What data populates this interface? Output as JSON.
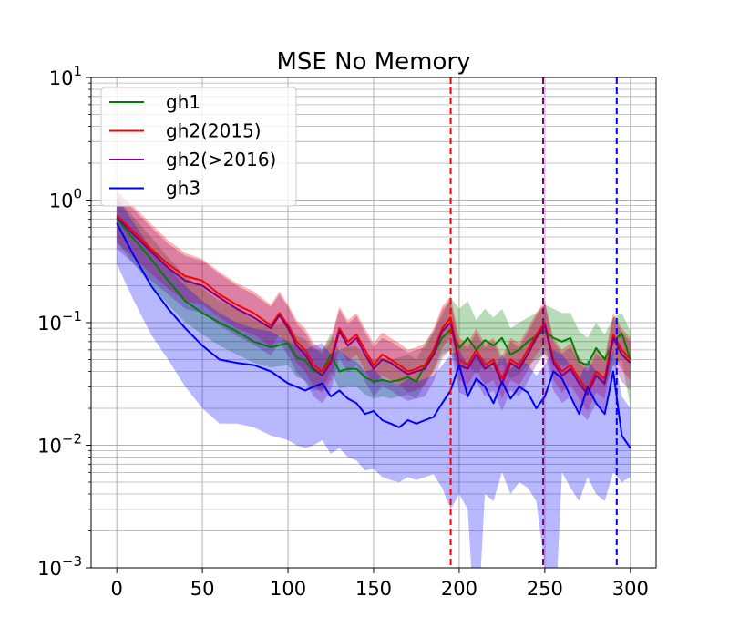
{
  "chart_data": {
    "type": "line",
    "title": "MSE No Memory",
    "xlabel": "",
    "ylabel": "",
    "yscale": "log",
    "xlim": [
      -15,
      315
    ],
    "ylim": [
      0.001,
      10
    ],
    "grid": true,
    "legend_position": "top-left",
    "x_ticks": [
      0,
      50,
      100,
      150,
      200,
      250,
      300
    ],
    "x_tick_labels": [
      "0",
      "50",
      "100",
      "150",
      "200",
      "250",
      "300"
    ],
    "y_ticks": [
      0.001,
      0.01,
      0.1,
      1,
      10
    ],
    "y_tick_labels": [
      {
        "base": "10",
        "exp": "−3"
      },
      {
        "base": "10",
        "exp": "−2"
      },
      {
        "base": "10",
        "exp": "−1"
      },
      {
        "base": "10",
        "exp": "0"
      },
      {
        "base": "10",
        "exp": "1"
      }
    ],
    "vertical_lines": [
      {
        "x": 195,
        "color": "#ff0000",
        "style": "dashed"
      },
      {
        "x": 249,
        "color": "#800080",
        "style": "dashed"
      },
      {
        "x": 292,
        "color": "#0000ff",
        "style": "dashed"
      }
    ],
    "series": [
      {
        "name": "gh1",
        "color": "#008000",
        "band_color": "#008000",
        "band_opacity": 0.28,
        "x": [
          0,
          10,
          20,
          30,
          40,
          50,
          60,
          70,
          80,
          90,
          100,
          105,
          110,
          115,
          120,
          125,
          130,
          135,
          140,
          145,
          150,
          155,
          160,
          165,
          170,
          175,
          180,
          185,
          190,
          195,
          200,
          205,
          210,
          215,
          220,
          225,
          230,
          235,
          240,
          245,
          250,
          255,
          260,
          265,
          270,
          275,
          280,
          285,
          290,
          295,
          300
        ],
        "values": [
          0.7,
          0.48,
          0.33,
          0.22,
          0.15,
          0.12,
          0.1,
          0.085,
          0.07,
          0.063,
          0.068,
          0.052,
          0.049,
          0.04,
          0.04,
          0.055,
          0.04,
          0.042,
          0.042,
          0.036,
          0.033,
          0.034,
          0.033,
          0.034,
          0.036,
          0.033,
          0.045,
          0.055,
          0.075,
          0.088,
          0.062,
          0.075,
          0.06,
          0.072,
          0.065,
          0.075,
          0.055,
          0.06,
          0.07,
          0.078,
          0.085,
          0.075,
          0.07,
          0.075,
          0.048,
          0.045,
          0.062,
          0.05,
          0.07,
          0.082,
          0.05
        ],
        "lower": [
          0.45,
          0.3,
          0.2,
          0.14,
          0.1,
          0.08,
          0.065,
          0.055,
          0.047,
          0.043,
          0.045,
          0.036,
          0.034,
          0.028,
          0.028,
          0.04,
          0.029,
          0.03,
          0.03,
          0.026,
          0.024,
          0.025,
          0.024,
          0.025,
          0.026,
          0.024,
          0.032,
          0.04,
          0.055,
          0.06,
          0.04,
          0.045,
          0.038,
          0.045,
          0.04,
          0.046,
          0.035,
          0.038,
          0.045,
          0.05,
          0.055,
          0.048,
          0.045,
          0.046,
          0.03,
          0.028,
          0.036,
          0.03,
          0.045,
          0.05,
          0.02
        ],
        "upper": [
          1.05,
          0.72,
          0.5,
          0.34,
          0.24,
          0.19,
          0.15,
          0.13,
          0.105,
          0.095,
          0.1,
          0.078,
          0.073,
          0.06,
          0.06,
          0.082,
          0.06,
          0.064,
          0.064,
          0.055,
          0.05,
          0.052,
          0.05,
          0.052,
          0.055,
          0.05,
          0.068,
          0.085,
          0.115,
          0.16,
          0.13,
          0.15,
          0.105,
          0.13,
          0.11,
          0.13,
          0.09,
          0.1,
          0.11,
          0.12,
          0.14,
          0.13,
          0.12,
          0.12,
          0.085,
          0.075,
          0.1,
          0.08,
          0.11,
          0.12,
          0.085
        ]
      },
      {
        "name": "gh2(2015)",
        "color": "#ff0000",
        "band_color": "#ff0000",
        "band_opacity": 0.3,
        "x": [
          0,
          10,
          20,
          30,
          40,
          50,
          60,
          70,
          80,
          90,
          95,
          100,
          105,
          110,
          115,
          120,
          125,
          130,
          135,
          140,
          145,
          150,
          155,
          160,
          165,
          170,
          175,
          180,
          185,
          190,
          195,
          200,
          205,
          210,
          215,
          220,
          225,
          230,
          235,
          240,
          245,
          250,
          255,
          260,
          265,
          270,
          275,
          280,
          285,
          290,
          295,
          300
        ],
        "values": [
          0.75,
          0.55,
          0.4,
          0.3,
          0.24,
          0.22,
          0.17,
          0.14,
          0.12,
          0.095,
          0.12,
          0.095,
          0.07,
          0.06,
          0.045,
          0.04,
          0.05,
          0.09,
          0.07,
          0.08,
          0.06,
          0.045,
          0.055,
          0.05,
          0.045,
          0.04,
          0.042,
          0.045,
          0.06,
          0.09,
          0.11,
          0.05,
          0.045,
          0.06,
          0.045,
          0.05,
          0.035,
          0.05,
          0.045,
          0.06,
          0.08,
          0.1,
          0.05,
          0.04,
          0.045,
          0.035,
          0.028,
          0.04,
          0.035,
          0.08,
          0.06,
          0.05
        ],
        "lower": [
          0.45,
          0.34,
          0.25,
          0.19,
          0.15,
          0.14,
          0.11,
          0.09,
          0.08,
          0.063,
          0.08,
          0.063,
          0.047,
          0.04,
          0.03,
          0.027,
          0.034,
          0.062,
          0.048,
          0.055,
          0.041,
          0.031,
          0.037,
          0.034,
          0.031,
          0.027,
          0.028,
          0.031,
          0.041,
          0.062,
          0.075,
          0.034,
          0.031,
          0.041,
          0.031,
          0.034,
          0.024,
          0.034,
          0.031,
          0.041,
          0.055,
          0.068,
          0.034,
          0.027,
          0.031,
          0.024,
          0.019,
          0.027,
          0.024,
          0.055,
          0.041,
          0.034
        ],
        "upper": [
          1.2,
          0.88,
          0.64,
          0.47,
          0.37,
          0.33,
          0.26,
          0.21,
          0.18,
          0.14,
          0.18,
          0.14,
          0.105,
          0.09,
          0.068,
          0.06,
          0.075,
          0.135,
          0.105,
          0.12,
          0.09,
          0.068,
          0.083,
          0.075,
          0.068,
          0.06,
          0.063,
          0.068,
          0.09,
          0.135,
          0.165,
          0.075,
          0.068,
          0.09,
          0.068,
          0.075,
          0.053,
          0.075,
          0.068,
          0.09,
          0.12,
          0.15,
          0.075,
          0.06,
          0.068,
          0.053,
          0.042,
          0.06,
          0.053,
          0.12,
          0.09,
          0.075
        ]
      },
      {
        "name": "gh2(>2016)",
        "color": "#800080",
        "band_color": "#800080",
        "band_opacity": 0.28,
        "x": [
          0,
          10,
          20,
          30,
          40,
          50,
          60,
          70,
          80,
          90,
          95,
          100,
          105,
          110,
          115,
          120,
          125,
          130,
          135,
          140,
          145,
          150,
          155,
          160,
          165,
          170,
          175,
          180,
          185,
          190,
          195,
          200,
          205,
          210,
          215,
          220,
          225,
          230,
          235,
          240,
          245,
          250,
          255,
          260,
          265,
          270,
          275,
          280,
          285,
          290,
          295,
          300
        ],
        "values": [
          0.72,
          0.52,
          0.38,
          0.28,
          0.22,
          0.2,
          0.16,
          0.13,
          0.11,
          0.09,
          0.115,
          0.09,
          0.065,
          0.055,
          0.042,
          0.037,
          0.047,
          0.085,
          0.065,
          0.075,
          0.055,
          0.042,
          0.05,
          0.047,
          0.042,
          0.038,
          0.04,
          0.042,
          0.055,
          0.085,
          0.1,
          0.045,
          0.042,
          0.055,
          0.042,
          0.047,
          0.032,
          0.047,
          0.042,
          0.055,
          0.075,
          0.095,
          0.047,
          0.037,
          0.042,
          0.032,
          0.026,
          0.037,
          0.032,
          0.075,
          0.055,
          0.047
        ],
        "lower": [
          0.4,
          0.3,
          0.22,
          0.17,
          0.13,
          0.12,
          0.095,
          0.078,
          0.066,
          0.054,
          0.069,
          0.054,
          0.039,
          0.033,
          0.025,
          0.022,
          0.028,
          0.051,
          0.039,
          0.045,
          0.033,
          0.025,
          0.03,
          0.028,
          0.025,
          0.023,
          0.024,
          0.025,
          0.033,
          0.051,
          0.06,
          0.027,
          0.025,
          0.033,
          0.025,
          0.028,
          0.019,
          0.028,
          0.025,
          0.033,
          0.045,
          0.057,
          0.028,
          0.022,
          0.025,
          0.019,
          0.016,
          0.022,
          0.019,
          0.045,
          0.033,
          0.028
        ],
        "upper": [
          1.15,
          0.83,
          0.6,
          0.44,
          0.35,
          0.32,
          0.25,
          0.2,
          0.17,
          0.135,
          0.17,
          0.135,
          0.098,
          0.083,
          0.063,
          0.056,
          0.07,
          0.128,
          0.098,
          0.113,
          0.083,
          0.063,
          0.075,
          0.07,
          0.063,
          0.057,
          0.06,
          0.063,
          0.083,
          0.128,
          0.15,
          0.068,
          0.063,
          0.083,
          0.063,
          0.07,
          0.048,
          0.07,
          0.063,
          0.083,
          0.113,
          0.143,
          0.07,
          0.056,
          0.063,
          0.048,
          0.039,
          0.056,
          0.048,
          0.113,
          0.083,
          0.07
        ]
      },
      {
        "name": "gh3",
        "color": "#0000ff",
        "band_color": "#0000ff",
        "band_opacity": 0.28,
        "x": [
          0,
          10,
          20,
          30,
          40,
          50,
          60,
          70,
          80,
          90,
          100,
          105,
          110,
          115,
          120,
          125,
          130,
          135,
          140,
          145,
          150,
          155,
          160,
          165,
          170,
          175,
          180,
          185,
          190,
          195,
          200,
          205,
          210,
          215,
          220,
          225,
          230,
          235,
          240,
          245,
          250,
          255,
          260,
          265,
          270,
          275,
          280,
          285,
          290,
          295,
          300
        ],
        "values": [
          0.65,
          0.35,
          0.2,
          0.13,
          0.09,
          0.065,
          0.05,
          0.047,
          0.045,
          0.04,
          0.032,
          0.03,
          0.028,
          0.03,
          0.032,
          0.025,
          0.028,
          0.024,
          0.022,
          0.018,
          0.019,
          0.016,
          0.015,
          0.014,
          0.016,
          0.015,
          0.016,
          0.017,
          0.022,
          0.028,
          0.045,
          0.025,
          0.035,
          0.03,
          0.022,
          0.033,
          0.024,
          0.03,
          0.027,
          0.02,
          0.025,
          0.04,
          0.035,
          0.025,
          0.018,
          0.03,
          0.022,
          0.018,
          0.04,
          0.012,
          0.0095
        ],
        "lower": [
          0.3,
          0.15,
          0.08,
          0.05,
          0.03,
          0.02,
          0.015,
          0.015,
          0.014,
          0.012,
          0.011,
          0.01,
          0.0095,
          0.01,
          0.011,
          0.0085,
          0.0095,
          0.008,
          0.0075,
          0.0062,
          0.0064,
          0.0055,
          0.0052,
          0.005,
          0.0055,
          0.0052,
          0.0055,
          0.0058,
          0.0045,
          0.003,
          0.004,
          0.003,
          0.0002,
          0.004,
          0.0035,
          0.006,
          0.004,
          0.005,
          0.0045,
          0.0035,
          0.001,
          0.0002,
          0.006,
          0.0045,
          0.0035,
          0.0055,
          0.004,
          0.0035,
          0.006,
          0.005,
          0.0055
        ],
        "upper": [
          1.05,
          0.65,
          0.4,
          0.28,
          0.2,
          0.15,
          0.12,
          0.1,
          0.09,
          0.085,
          0.07,
          0.065,
          0.06,
          0.065,
          0.068,
          0.055,
          0.06,
          0.052,
          0.048,
          0.04,
          0.042,
          0.035,
          0.033,
          0.031,
          0.035,
          0.033,
          0.035,
          0.037,
          0.045,
          0.055,
          0.06,
          0.045,
          0.055,
          0.05,
          0.04,
          0.055,
          0.042,
          0.05,
          0.046,
          0.037,
          0.045,
          0.06,
          0.055,
          0.045,
          0.034,
          0.05,
          0.04,
          0.034,
          0.06,
          0.025,
          0.02
        ]
      }
    ]
  }
}
